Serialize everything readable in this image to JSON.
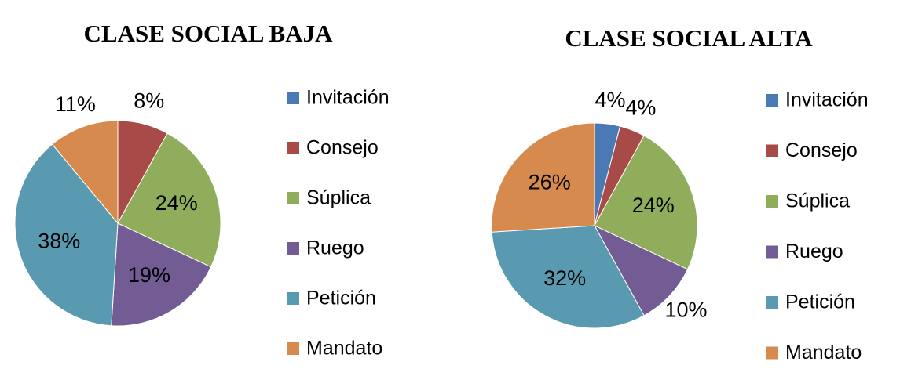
{
  "chart_data": [
    {
      "type": "pie",
      "title": "CLASE SOCIAL BAJA",
      "categories": [
        "Invitación",
        "Consejo",
        "Súplica",
        "Ruego",
        "Petición",
        "Mandato"
      ],
      "values": [
        0,
        8,
        24,
        19,
        38,
        11
      ],
      "value_labels": [
        null,
        "8%",
        "24%",
        "19%",
        "38%",
        "11%"
      ],
      "colors": [
        "#4a7ab5",
        "#a84b48",
        "#8fad5a",
        "#735b94",
        "#5a9ab0",
        "#d78a4e"
      ]
    },
    {
      "type": "pie",
      "title": "CLASE SOCIAL ALTA",
      "categories": [
        "Invitación",
        "Consejo",
        "Súplica",
        "Ruego",
        "Petición",
        "Mandato"
      ],
      "values": [
        4,
        4,
        24,
        10,
        32,
        26
      ],
      "value_labels": [
        "4%",
        "4%",
        "24%",
        "10%",
        "32%",
        "26%"
      ],
      "colors": [
        "#4a7ab5",
        "#a84b48",
        "#8fad5a",
        "#735b94",
        "#5a9ab0",
        "#d78a4e"
      ]
    }
  ]
}
